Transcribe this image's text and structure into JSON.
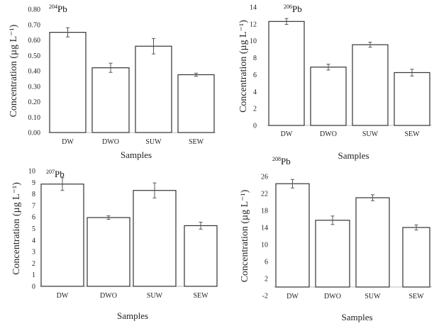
{
  "chart_data": [
    {
      "type": "bar",
      "title": "Pb",
      "title_superscript": "204",
      "categories": [
        "DW",
        "DWO",
        "SUW",
        "SEW"
      ],
      "values": [
        0.65,
        0.42,
        0.56,
        0.375
      ],
      "errors": [
        0.03,
        0.03,
        0.05,
        0.01
      ],
      "xlabel": "Samples",
      "ylabel": "Concentration (µg L⁻¹)",
      "ylim": [
        0,
        0.8
      ],
      "yticks": [
        "0.00",
        "0.10",
        "0.20",
        "0.30",
        "0.40",
        "0.50",
        "0.60",
        "0.70",
        "0.80"
      ],
      "grid": false
    },
    {
      "type": "bar",
      "title": "Pb",
      "title_superscript": "206",
      "categories": [
        "DW",
        "DWO",
        "SUW",
        "SEW"
      ],
      "values": [
        12.3,
        6.9,
        9.55,
        6.25
      ],
      "errors": [
        0.35,
        0.35,
        0.3,
        0.4
      ],
      "xlabel": "Samples",
      "ylabel": "Concentration (µg L⁻¹)",
      "ylim": [
        0,
        14
      ],
      "yticks": [
        "0",
        "2",
        "4",
        "6",
        "8",
        "10",
        "12",
        "14"
      ],
      "grid": false
    },
    {
      "type": "bar",
      "title": "Pb",
      "title_superscript": "207",
      "categories": [
        "DW",
        "DWO",
        "SUW",
        "SEW"
      ],
      "values": [
        8.85,
        5.95,
        8.3,
        5.25
      ],
      "errors": [
        0.55,
        0.15,
        0.65,
        0.3
      ],
      "xlabel": "Samples",
      "ylabel": "Concentration (µg L⁻¹)",
      "ylim": [
        0,
        10
      ],
      "yticks": [
        "0",
        "1",
        "2",
        "3",
        "4",
        "5",
        "6",
        "7",
        "8",
        "9",
        "10"
      ],
      "grid": false
    },
    {
      "type": "bar",
      "title": "Pb",
      "title_superscript": "208",
      "categories": [
        "DW",
        "DWO",
        "SUW",
        "SEW"
      ],
      "values": [
        24.3,
        15.7,
        21.0,
        14.0
      ],
      "errors": [
        1.0,
        1.0,
        0.7,
        0.6
      ],
      "xlabel": "Samples",
      "ylabel": "Concentration (µg L⁻¹)",
      "ylim": [
        -2,
        26
      ],
      "yticks": [
        "-2",
        "2",
        "6",
        "10",
        "14",
        "18",
        "22",
        "26"
      ],
      "grid": false
    }
  ]
}
